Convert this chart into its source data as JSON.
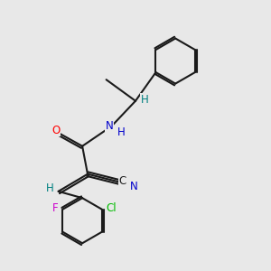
{
  "background_color": "#e8e8e8",
  "bond_color": "#1a1a1a",
  "bond_width": 1.5,
  "atom_colors": {
    "O": "#ff0000",
    "N": "#0000cc",
    "F": "#cc00cc",
    "Cl": "#00bb00",
    "C": "#1a1a1a",
    "H": "#008080"
  },
  "font_size": 8.5,
  "fig_size": [
    3.0,
    3.0
  ],
  "dpi": 100
}
